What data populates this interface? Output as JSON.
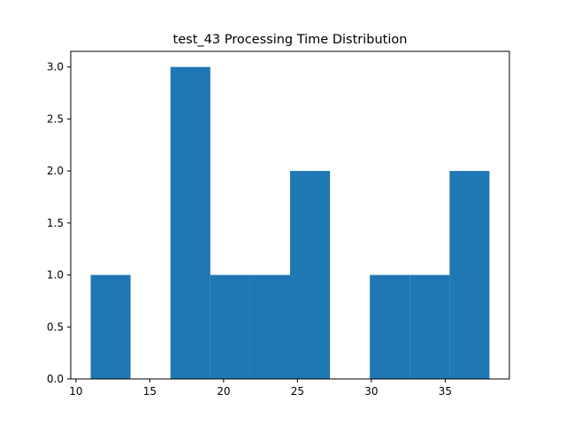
{
  "chart_data": {
    "type": "bar",
    "title": "test_43 Processing Time Distribution",
    "xlabel": "",
    "ylabel": "",
    "bar_color": "#1f77b4",
    "xlim": [
      9.65,
      39.35
    ],
    "ylim": [
      0,
      3.15
    ],
    "x_ticks": [
      10,
      15,
      20,
      25,
      30,
      35
    ],
    "y_ticks": [
      0.0,
      0.5,
      1.0,
      1.5,
      2.0,
      2.5,
      3.0
    ],
    "bins": [
      {
        "start": 11.0,
        "end": 13.7,
        "count": 1
      },
      {
        "start": 13.7,
        "end": 16.4,
        "count": 0
      },
      {
        "start": 16.4,
        "end": 19.1,
        "count": 3
      },
      {
        "start": 19.1,
        "end": 21.8,
        "count": 1
      },
      {
        "start": 21.8,
        "end": 24.5,
        "count": 1
      },
      {
        "start": 24.5,
        "end": 27.2,
        "count": 2
      },
      {
        "start": 27.2,
        "end": 29.9,
        "count": 0
      },
      {
        "start": 29.9,
        "end": 32.6,
        "count": 1
      },
      {
        "start": 32.6,
        "end": 35.3,
        "count": 1
      },
      {
        "start": 35.3,
        "end": 38.0,
        "count": 2
      }
    ]
  }
}
